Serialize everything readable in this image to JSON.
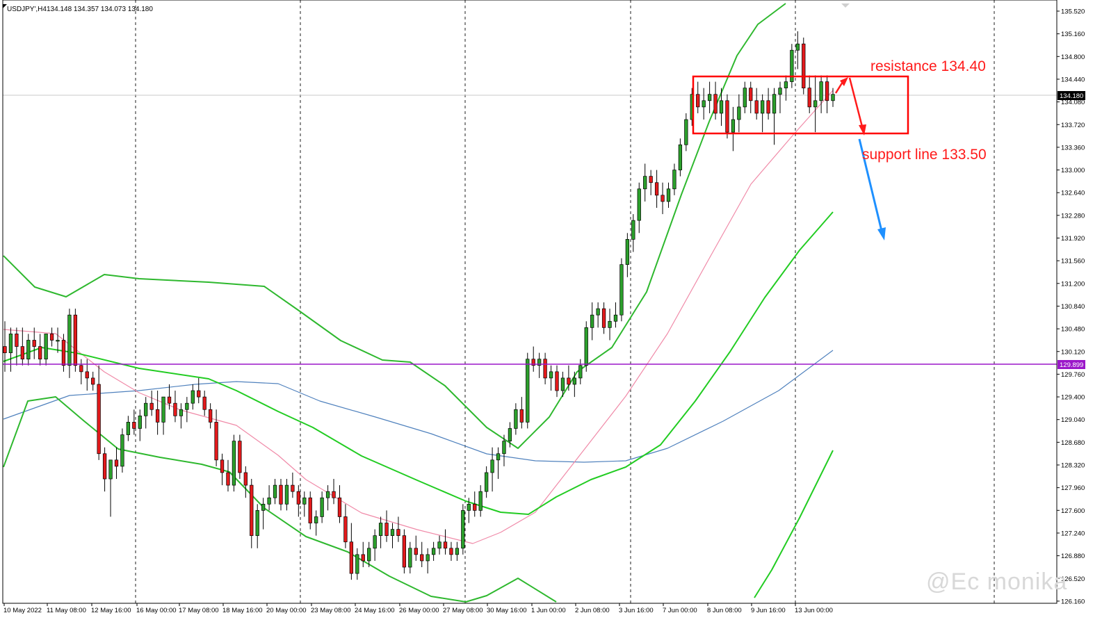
{
  "header": {
    "symbol": "USDJPY",
    "timeframe": "H4",
    "ohlc": "134.148 134.357 134.073 134.180"
  },
  "watermark": "@Ec monika",
  "colors": {
    "bull_candle": "#2ca02c",
    "bear_candle": "#e31a1c",
    "bb_outer": "#2eb82e",
    "bb_bright": "#22cc22",
    "ma_pink": "#f08aa8",
    "ma_blue": "#4f81bd",
    "support_line": "#9b17c9",
    "box": "#ff0000",
    "annotation": "#ff1a1a",
    "arrow_blue": "#1e90ff"
  },
  "chart_data": {
    "type": "candlestick",
    "symbol": "USDJPY",
    "timeframe": "H4",
    "ylim": [
      126.0,
      135.7
    ],
    "y_ticks": [
      "135.520",
      "135.160",
      "134.800",
      "134.440",
      "134.080",
      "133.720",
      "133.360",
      "133.000",
      "132.640",
      "132.280",
      "131.920",
      "131.560",
      "131.200",
      "130.840",
      "130.480",
      "130.120",
      "129.760",
      "129.400",
      "129.040",
      "128.680",
      "128.320",
      "127.960",
      "127.600",
      "127.240",
      "126.880",
      "126.520",
      "126.160"
    ],
    "x_ticks": [
      "10 May 2022",
      "11 May 08:00",
      "12 May 16:00",
      "16 May 00:00",
      "17 May 08:00",
      "18 May 16:00",
      "20 May 00:00",
      "23 May 08:00",
      "24 May 16:00",
      "26 May 00:00",
      "27 May 08:00",
      "30 May 16:00",
      "1 Jun 00:00",
      "2 Jun 08:00",
      "3 Jun 16:00",
      "7 Jun 00:00",
      "8 Jun 08:00",
      "9 Jun 16:00",
      "13 Jun 00:00"
    ],
    "current_price": "134.180",
    "horizontal_level": "129.899",
    "candles": [
      [
        130.2,
        130.6,
        129.8,
        130.1
      ],
      [
        130.1,
        130.5,
        129.8,
        130.4
      ],
      [
        130.4,
        130.5,
        129.9,
        130.2
      ],
      [
        130.2,
        130.5,
        129.9,
        130.0
      ],
      [
        130.0,
        130.4,
        129.9,
        130.3
      ],
      [
        130.3,
        130.5,
        130.0,
        130.2
      ],
      [
        130.2,
        130.4,
        129.9,
        130.0
      ],
      [
        130.0,
        130.4,
        129.9,
        130.4
      ],
      [
        130.4,
        130.5,
        130.2,
        130.3
      ],
      [
        130.3,
        130.5,
        130.1,
        130.3
      ],
      [
        130.3,
        130.4,
        129.8,
        129.9
      ],
      [
        129.9,
        130.8,
        129.7,
        130.7
      ],
      [
        130.7,
        130.8,
        129.8,
        129.9
      ],
      [
        129.9,
        130.0,
        129.6,
        129.8
      ],
      [
        129.8,
        130.0,
        129.5,
        129.7
      ],
      [
        129.7,
        129.8,
        129.5,
        129.6
      ],
      [
        129.6,
        129.9,
        128.4,
        128.5
      ],
      [
        128.5,
        128.6,
        127.9,
        128.1
      ],
      [
        128.1,
        128.4,
        127.5,
        128.4
      ],
      [
        128.4,
        128.6,
        128.1,
        128.3
      ],
      [
        128.3,
        128.9,
        128.2,
        128.8
      ],
      [
        128.8,
        129.1,
        128.7,
        129.0
      ],
      [
        129.0,
        129.2,
        128.8,
        128.9
      ],
      [
        128.9,
        129.2,
        128.7,
        129.1
      ],
      [
        129.1,
        129.4,
        128.9,
        129.3
      ],
      [
        129.3,
        129.5,
        129.1,
        129.2
      ],
      [
        129.2,
        129.5,
        128.8,
        129.0
      ],
      [
        129.0,
        129.4,
        128.8,
        129.4
      ],
      [
        129.4,
        129.6,
        129.2,
        129.3
      ],
      [
        129.3,
        129.5,
        129.0,
        129.1
      ],
      [
        129.1,
        129.3,
        128.9,
        129.2
      ],
      [
        129.2,
        129.4,
        129.0,
        129.3
      ],
      [
        129.3,
        129.6,
        129.2,
        129.5
      ],
      [
        129.5,
        129.7,
        129.3,
        129.4
      ],
      [
        129.4,
        129.5,
        129.1,
        129.2
      ],
      [
        129.2,
        129.3,
        128.9,
        129.0
      ],
      [
        129.0,
        129.2,
        128.3,
        128.4
      ],
      [
        128.4,
        128.5,
        128.0,
        128.2
      ],
      [
        128.2,
        128.4,
        127.9,
        128.0
      ],
      [
        128.0,
        128.8,
        127.9,
        128.7
      ],
      [
        128.7,
        128.8,
        128.1,
        128.2
      ],
      [
        128.2,
        128.3,
        127.8,
        128.0
      ],
      [
        128.0,
        128.1,
        127.0,
        127.2
      ],
      [
        127.2,
        127.7,
        127.0,
        127.6
      ],
      [
        127.6,
        127.8,
        127.3,
        127.7
      ],
      [
        127.7,
        128.0,
        127.6,
        127.8
      ],
      [
        127.8,
        128.1,
        127.7,
        128.0
      ],
      [
        128.0,
        128.1,
        127.6,
        127.7
      ],
      [
        127.7,
        128.1,
        127.6,
        128.0
      ],
      [
        128.0,
        128.2,
        127.8,
        127.9
      ],
      [
        127.9,
        128.0,
        127.5,
        127.7
      ],
      [
        127.7,
        127.9,
        127.5,
        127.8
      ],
      [
        127.8,
        127.9,
        127.3,
        127.4
      ],
      [
        127.4,
        127.6,
        127.2,
        127.5
      ],
      [
        127.5,
        127.9,
        127.4,
        127.8
      ],
      [
        127.8,
        128.0,
        127.6,
        127.9
      ],
      [
        127.9,
        128.1,
        127.7,
        127.8
      ],
      [
        127.8,
        128.0,
        127.4,
        127.5
      ],
      [
        127.5,
        127.7,
        127.0,
        127.1
      ],
      [
        127.1,
        127.4,
        126.5,
        126.6
      ],
      [
        126.6,
        127.0,
        126.5,
        126.9
      ],
      [
        126.9,
        127.1,
        126.7,
        126.8
      ],
      [
        126.8,
        127.1,
        126.7,
        127.0
      ],
      [
        127.0,
        127.3,
        126.8,
        127.2
      ],
      [
        127.2,
        127.5,
        127.0,
        127.4
      ],
      [
        127.4,
        127.6,
        127.1,
        127.2
      ],
      [
        127.2,
        127.4,
        127.0,
        127.3
      ],
      [
        127.3,
        127.5,
        127.1,
        127.2
      ],
      [
        127.2,
        127.3,
        126.6,
        126.7
      ],
      [
        126.7,
        127.1,
        126.6,
        127.0
      ],
      [
        127.0,
        127.2,
        126.8,
        126.9
      ],
      [
        126.9,
        127.1,
        126.7,
        126.8
      ],
      [
        126.8,
        127.0,
        126.6,
        126.9
      ],
      [
        126.9,
        127.1,
        126.8,
        127.0
      ],
      [
        127.0,
        127.2,
        126.9,
        127.1
      ],
      [
        127.1,
        127.3,
        126.9,
        127.0
      ],
      [
        127.0,
        127.1,
        126.8,
        126.9
      ],
      [
        126.9,
        127.1,
        126.8,
        127.0
      ],
      [
        127.0,
        127.7,
        126.9,
        127.6
      ],
      [
        127.6,
        127.8,
        127.4,
        127.7
      ],
      [
        127.7,
        127.9,
        127.5,
        127.6
      ],
      [
        127.6,
        128.0,
        127.5,
        127.9
      ],
      [
        127.9,
        128.3,
        127.8,
        128.2
      ],
      [
        128.2,
        128.6,
        127.9,
        128.4
      ],
      [
        128.4,
        128.6,
        128.1,
        128.5
      ],
      [
        128.5,
        128.8,
        128.3,
        128.7
      ],
      [
        128.7,
        129.0,
        128.6,
        128.9
      ],
      [
        128.9,
        129.3,
        128.8,
        129.2
      ],
      [
        129.2,
        129.4,
        128.9,
        129.0
      ],
      [
        129.0,
        130.1,
        128.9,
        130.0
      ],
      [
        130.0,
        130.2,
        129.8,
        129.9
      ],
      [
        129.9,
        130.1,
        129.7,
        130.0
      ],
      [
        130.0,
        130.1,
        129.6,
        129.7
      ],
      [
        129.7,
        129.9,
        129.5,
        129.8
      ],
      [
        129.8,
        129.9,
        129.4,
        129.5
      ],
      [
        129.5,
        129.8,
        129.4,
        129.7
      ],
      [
        129.7,
        129.9,
        129.5,
        129.6
      ],
      [
        129.6,
        129.8,
        129.4,
        129.7
      ],
      [
        129.7,
        130.0,
        129.6,
        129.9
      ],
      [
        129.9,
        130.6,
        129.8,
        130.5
      ],
      [
        130.5,
        130.9,
        130.3,
        130.7
      ],
      [
        130.7,
        130.9,
        130.5,
        130.8
      ],
      [
        130.8,
        130.9,
        130.4,
        130.5
      ],
      [
        130.5,
        130.8,
        130.3,
        130.6
      ],
      [
        130.6,
        130.9,
        130.5,
        130.7
      ],
      [
        130.7,
        131.6,
        130.6,
        131.5
      ],
      [
        131.5,
        132.0,
        131.3,
        131.9
      ],
      [
        131.9,
        132.3,
        131.7,
        132.2
      ],
      [
        132.2,
        132.8,
        132.0,
        132.7
      ],
      [
        132.7,
        133.1,
        132.5,
        132.9
      ],
      [
        132.9,
        133.0,
        132.6,
        132.8
      ],
      [
        132.8,
        133.0,
        132.4,
        132.6
      ],
      [
        132.6,
        132.8,
        132.3,
        132.5
      ],
      [
        132.5,
        132.8,
        132.4,
        132.7
      ],
      [
        132.7,
        133.1,
        132.6,
        133.0
      ],
      [
        133.0,
        133.5,
        132.9,
        133.4
      ],
      [
        133.4,
        133.9,
        133.3,
        133.8
      ],
      [
        133.8,
        134.3,
        133.7,
        134.2
      ],
      [
        134.2,
        134.4,
        133.9,
        134.0
      ],
      [
        134.0,
        134.3,
        133.8,
        134.1
      ],
      [
        134.1,
        134.4,
        133.9,
        134.2
      ],
      [
        134.2,
        134.4,
        133.8,
        133.9
      ],
      [
        133.9,
        134.3,
        133.7,
        134.1
      ],
      [
        134.1,
        134.2,
        133.5,
        133.6
      ],
      [
        133.6,
        134.0,
        133.3,
        133.8
      ],
      [
        133.8,
        134.2,
        133.6,
        134.0
      ],
      [
        134.0,
        134.4,
        133.9,
        134.3
      ],
      [
        134.3,
        134.4,
        133.9,
        134.1
      ],
      [
        134.1,
        134.3,
        133.8,
        133.9
      ],
      [
        133.9,
        134.2,
        133.6,
        134.1
      ],
      [
        134.1,
        134.3,
        133.8,
        133.9
      ],
      [
        133.9,
        134.3,
        133.4,
        134.2
      ],
      [
        134.2,
        134.4,
        133.9,
        134.3
      ],
      [
        134.3,
        134.5,
        134.1,
        134.4
      ],
      [
        134.4,
        135.0,
        134.3,
        134.9
      ],
      [
        134.9,
        135.2,
        134.6,
        135.0
      ],
      [
        135.0,
        135.1,
        134.2,
        134.3
      ],
      [
        134.3,
        134.5,
        133.9,
        134.0
      ],
      [
        134.0,
        134.5,
        133.6,
        134.1
      ],
      [
        134.1,
        134.5,
        133.9,
        134.4
      ],
      [
        134.4,
        134.5,
        133.9,
        134.1
      ],
      [
        134.1,
        134.3,
        134.0,
        134.2
      ]
    ],
    "bb_upper": [
      [
        5,
        368
      ],
      [
        50,
        413
      ],
      [
        95,
        427
      ],
      [
        150,
        395
      ],
      [
        200,
        401
      ],
      [
        300,
        406
      ],
      [
        380,
        412
      ],
      [
        430,
        447
      ],
      [
        490,
        490
      ],
      [
        550,
        518
      ],
      [
        590,
        521
      ],
      [
        640,
        555
      ],
      [
        700,
        615
      ],
      [
        745,
        645
      ],
      [
        790,
        600
      ],
      [
        830,
        535
      ],
      [
        880,
        500
      ],
      [
        930,
        420
      ],
      [
        980,
        280
      ],
      [
        1020,
        175
      ],
      [
        1060,
        80
      ],
      [
        1090,
        35
      ],
      [
        1130,
        5
      ]
    ],
    "bb_middle": [
      [
        5,
        520
      ],
      [
        60,
        500
      ],
      [
        110,
        508
      ],
      [
        200,
        530
      ],
      [
        300,
        545
      ],
      [
        340,
        562
      ],
      [
        400,
        592
      ],
      [
        450,
        615
      ],
      [
        520,
        656
      ],
      [
        600,
        691
      ],
      [
        670,
        721
      ],
      [
        720,
        737
      ],
      [
        760,
        740
      ],
      [
        800,
        715
      ],
      [
        850,
        690
      ],
      [
        900,
        672
      ],
      [
        950,
        640
      ],
      [
        1000,
        577
      ],
      [
        1050,
        506
      ],
      [
        1100,
        428
      ],
      [
        1150,
        360
      ],
      [
        1198,
        305
      ]
    ],
    "bb_lower": [
      [
        5,
        672
      ],
      [
        40,
        577
      ],
      [
        80,
        571
      ],
      [
        120,
        605
      ],
      [
        170,
        646
      ],
      [
        230,
        658
      ],
      [
        290,
        668
      ],
      [
        330,
        679
      ],
      [
        380,
        731
      ],
      [
        440,
        772
      ],
      [
        500,
        794
      ],
      [
        560,
        829
      ],
      [
        620,
        858
      ],
      [
        670,
        866
      ],
      [
        700,
        857
      ],
      [
        745,
        832
      ],
      [
        800,
        866
      ]
    ],
    "bb_lower2": [
      [
        1085,
        860
      ],
      [
        1110,
        820
      ],
      [
        1150,
        745
      ],
      [
        1198,
        648
      ]
    ],
    "ma_pink": [
      [
        5,
        474
      ],
      [
        80,
        480
      ],
      [
        150,
        535
      ],
      [
        200,
        565
      ],
      [
        260,
        590
      ],
      [
        340,
        612
      ],
      [
        400,
        655
      ],
      [
        440,
        690
      ],
      [
        520,
        738
      ],
      [
        600,
        762
      ],
      [
        680,
        782
      ],
      [
        720,
        766
      ],
      [
        770,
        737
      ],
      [
        830,
        660
      ],
      [
        900,
        570
      ],
      [
        960,
        480
      ],
      [
        1020,
        372
      ],
      [
        1080,
        265
      ],
      [
        1140,
        195
      ],
      [
        1198,
        130
      ]
    ],
    "ma_blue": [
      [
        5,
        603
      ],
      [
        100,
        569
      ],
      [
        200,
        562
      ],
      [
        280,
        553
      ],
      [
        340,
        549
      ],
      [
        400,
        552
      ],
      [
        460,
        577
      ],
      [
        540,
        600
      ],
      [
        620,
        624
      ],
      [
        700,
        653
      ],
      [
        770,
        663
      ],
      [
        840,
        665
      ],
      [
        900,
        663
      ],
      [
        960,
        645
      ],
      [
        1040,
        606
      ],
      [
        1120,
        562
      ],
      [
        1198,
        504
      ]
    ]
  },
  "annotations": {
    "resistance_label": "resistance 134.40",
    "support_label": "support line 133.50"
  }
}
